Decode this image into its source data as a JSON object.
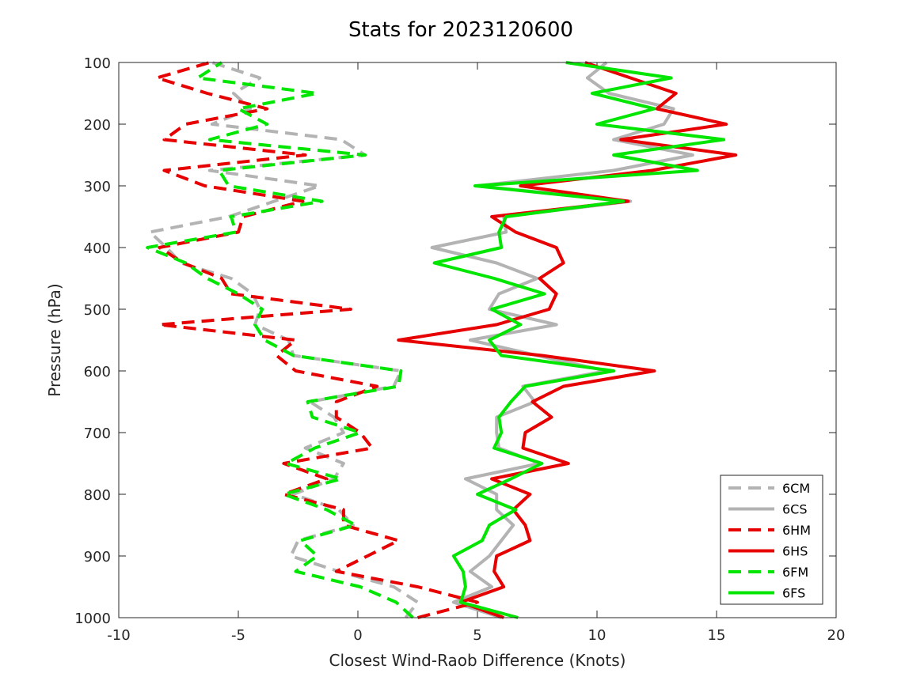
{
  "chart_data": {
    "type": "line",
    "title": "Stats for 2023120600",
    "xlabel": "Closest Wind-Raob Difference (Knots)",
    "ylabel": "Pressure (hPa)",
    "xlim": [
      -10,
      20
    ],
    "ylim": [
      100,
      1000
    ],
    "y_reversed": true,
    "grid": false,
    "legend_position": "bottom-right",
    "xticks": [
      -10,
      -5,
      0,
      5,
      10,
      15,
      20
    ],
    "yticks": [
      100,
      200,
      300,
      400,
      500,
      600,
      700,
      800,
      900,
      1000
    ],
    "pressure": [
      1000,
      975,
      950,
      925,
      900,
      875,
      850,
      825,
      800,
      775,
      750,
      725,
      700,
      675,
      650,
      625,
      600,
      575,
      550,
      525,
      500,
      475,
      450,
      425,
      400,
      375,
      350,
      325,
      300,
      275,
      250,
      225,
      200,
      175,
      150,
      125,
      100
    ],
    "series": [
      {
        "name": "6CM",
        "color": "#b3b3b3",
        "dash": true,
        "values": [
          2.0,
          2.5,
          1.5,
          -0.8,
          -2.8,
          -2.5,
          -0.2,
          -0.8,
          -2.7,
          -1.0,
          -0.6,
          -2.2,
          -0.6,
          -1.0,
          -2.0,
          1.5,
          1.8,
          -2.7,
          -2.9,
          -4.3,
          -4.1,
          -4.4,
          -5.3,
          -7.4,
          -8.0,
          -8.7,
          -5.4,
          -3.5,
          -1.6,
          -6.2,
          0.3,
          -0.7,
          -6.1,
          -4.5,
          -5.2,
          -4.1,
          -6.1
        ]
      },
      {
        "name": "6CS",
        "color": "#b3b3b3",
        "dash": false,
        "values": [
          6.0,
          4.0,
          5.6,
          4.7,
          5.5,
          6.0,
          6.5,
          5.8,
          5.8,
          4.5,
          7.6,
          5.9,
          5.8,
          5.8,
          7.4,
          6.9,
          10.4,
          7.5,
          4.7,
          8.3,
          5.5,
          5.9,
          7.5,
          5.8,
          3.1,
          6.2,
          6.1,
          11.4,
          5.0,
          10.7,
          14.0,
          10.7,
          12.8,
          13.2,
          10.5,
          9.6,
          10.4
        ]
      },
      {
        "name": "6HM",
        "color": "#e60000",
        "dash": true,
        "values": [
          2.5,
          5.0,
          2.5,
          -0.9,
          0.4,
          1.7,
          -0.6,
          -0.6,
          -3.1,
          -1.3,
          -3.1,
          0.6,
          0.1,
          -0.9,
          -0.9,
          0.8,
          -2.6,
          -3.4,
          -2.6,
          -8.3,
          -0.3,
          -5.3,
          -5.7,
          -7.3,
          -8.3,
          -5.0,
          -4.8,
          -2.3,
          -6.4,
          -8.1,
          -2.2,
          -8.1,
          -7.2,
          -3.8,
          -6.3,
          -8.4,
          -6.2
        ]
      },
      {
        "name": "6HS",
        "color": "#e60000",
        "dash": false,
        "values": [
          6.1,
          4.3,
          6.1,
          5.7,
          5.8,
          7.2,
          7.0,
          6.5,
          7.2,
          5.6,
          8.8,
          6.9,
          7.0,
          8.1,
          7.3,
          8.6,
          12.4,
          7.7,
          1.7,
          5.8,
          8.0,
          8.3,
          7.6,
          8.6,
          8.3,
          6.6,
          5.6,
          11.3,
          6.8,
          12.3,
          15.8,
          11.0,
          15.4,
          12.5,
          13.3,
          11.4,
          9.5
        ]
      },
      {
        "name": "6FM",
        "color": "#00e600",
        "dash": true,
        "values": [
          2.3,
          1.6,
          0.1,
          -2.6,
          -1.7,
          -2.4,
          -0.1,
          -1.3,
          -3.1,
          -0.7,
          -3.0,
          -1.8,
          0.1,
          -1.9,
          -2.1,
          1.7,
          1.8,
          -2.7,
          -3.9,
          -4.3,
          -4.0,
          -5.0,
          -6.3,
          -7.2,
          -8.8,
          -5.1,
          -5.3,
          -1.5,
          -5.4,
          -5.8,
          0.3,
          -6.2,
          -3.8,
          -5.0,
          -1.7,
          -6.7,
          -5.7
        ]
      },
      {
        "name": "6FS",
        "color": "#00e600",
        "dash": false,
        "values": [
          6.7,
          4.3,
          4.5,
          4.4,
          4.0,
          5.2,
          5.5,
          6.6,
          5.0,
          6.4,
          7.7,
          5.7,
          6.0,
          5.9,
          6.4,
          7.0,
          10.7,
          6.0,
          5.5,
          6.8,
          5.6,
          7.8,
          5.7,
          3.2,
          6.0,
          5.9,
          6.2,
          11.1,
          4.9,
          14.2,
          10.7,
          15.3,
          10.0,
          12.4,
          9.8,
          13.1,
          8.7
        ]
      }
    ]
  }
}
